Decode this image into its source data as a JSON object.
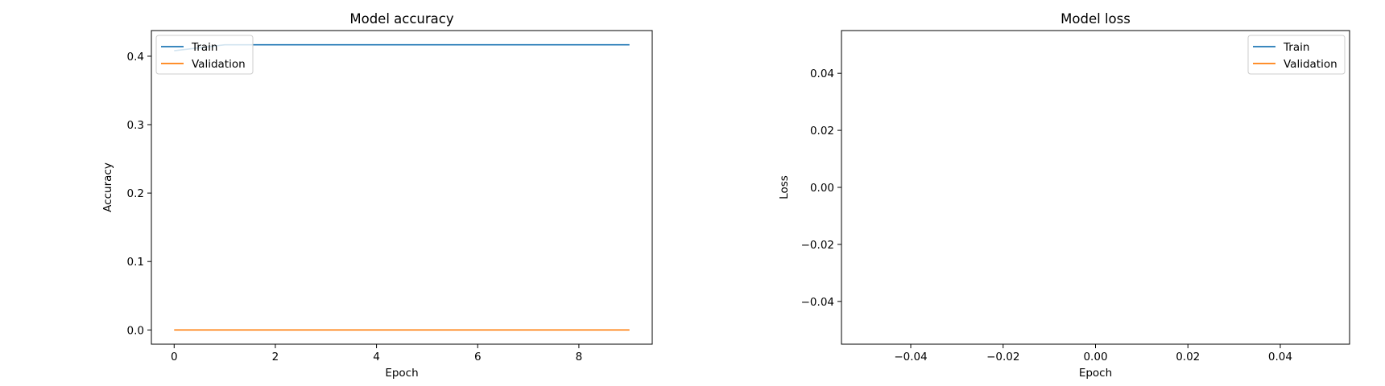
{
  "chart_data": [
    {
      "type": "line",
      "title": "Model accuracy",
      "xlabel": "Epoch",
      "ylabel": "Accuracy",
      "xlim": [
        -0.45,
        9.45
      ],
      "ylim": [
        -0.0208,
        0.4375
      ],
      "xticks": [
        0,
        2,
        4,
        6,
        8
      ],
      "xtick_labels": [
        "0",
        "2",
        "4",
        "6",
        "8"
      ],
      "yticks": [
        0.0,
        0.1,
        0.2,
        0.3,
        0.4
      ],
      "ytick_labels": [
        "0.0",
        "0.1",
        "0.2",
        "0.3",
        "0.4"
      ],
      "grid": false,
      "legend_loc": "upper left",
      "x": [
        0,
        1,
        2,
        3,
        4,
        5,
        6,
        7,
        8,
        9
      ],
      "series": [
        {
          "name": "Train",
          "color": "#1f77b4",
          "values": [
            0.408,
            0.4167,
            0.4167,
            0.4167,
            0.4167,
            0.4167,
            0.4167,
            0.4167,
            0.4167,
            0.4167
          ]
        },
        {
          "name": "Validation",
          "color": "#ff7f0e",
          "values": [
            0,
            0,
            0,
            0,
            0,
            0,
            0,
            0,
            0,
            0
          ]
        }
      ]
    },
    {
      "type": "line",
      "title": "Model loss",
      "xlabel": "Epoch",
      "ylabel": "Loss",
      "xlim": [
        -0.055,
        0.055
      ],
      "ylim": [
        -0.055,
        0.055
      ],
      "xticks": [
        -0.04,
        -0.02,
        0.0,
        0.02,
        0.04
      ],
      "xtick_labels": [
        "−0.04",
        "−0.02",
        "0.00",
        "0.02",
        "0.04"
      ],
      "yticks": [
        -0.04,
        -0.02,
        0.0,
        0.02,
        0.04
      ],
      "ytick_labels": [
        "−0.04",
        "−0.02",
        "0.00",
        "0.02",
        "0.04"
      ],
      "grid": false,
      "legend_loc": "upper right",
      "x": [],
      "series": [
        {
          "name": "Train",
          "color": "#1f77b4",
          "values": []
        },
        {
          "name": "Validation",
          "color": "#ff7f0e",
          "values": []
        }
      ]
    }
  ]
}
